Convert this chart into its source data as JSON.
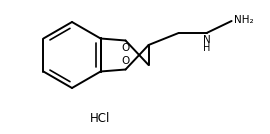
{
  "bg_color": "#ffffff",
  "line_color": "#000000",
  "line_width": 1.4,
  "text_color": "#000000",
  "hcl_label": "HCl",
  "hcl_fontsize": 8.5,
  "o_label": "O",
  "o_fontsize": 7.5,
  "nh_n_label": "N",
  "nh_h_label": "H",
  "nh2_label": "NH₂",
  "chain_fontsize": 7.5
}
